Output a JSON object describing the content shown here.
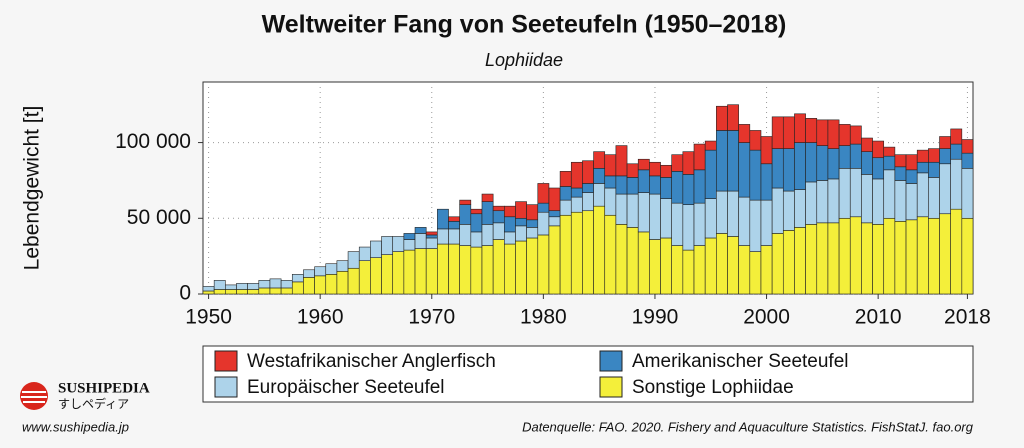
{
  "chart_data": {
    "type": "stacked-bar",
    "title": "Weltweiter Fang von Seeteufeln (1950–2018)",
    "subtitle": "Lophiidae",
    "y_label": "Lebendgewicht [t]",
    "source": "Datenquelle: FAO. 2020. Fishery and Aquaculture Statistics. FishStatJ. fao.org",
    "x": [
      1950,
      1951,
      1952,
      1953,
      1954,
      1955,
      1956,
      1957,
      1958,
      1959,
      1960,
      1961,
      1962,
      1963,
      1964,
      1965,
      1966,
      1967,
      1968,
      1969,
      1970,
      1971,
      1972,
      1973,
      1974,
      1975,
      1976,
      1977,
      1978,
      1979,
      1980,
      1981,
      1982,
      1983,
      1984,
      1985,
      1986,
      1987,
      1988,
      1989,
      1990,
      1991,
      1992,
      1993,
      1994,
      1995,
      1996,
      1997,
      1998,
      1999,
      2000,
      2001,
      2002,
      2003,
      2004,
      2005,
      2006,
      2007,
      2008,
      2009,
      2010,
      2011,
      2012,
      2013,
      2014,
      2015,
      2016,
      2017,
      2018
    ],
    "series": [
      {
        "name": "Sonstige Lophiidae",
        "color": "#f4ef3a",
        "values": [
          2000,
          3000,
          3000,
          3000,
          3000,
          4000,
          4000,
          4000,
          8000,
          11000,
          12000,
          13000,
          15000,
          17000,
          22000,
          24000,
          26000,
          28000,
          29000,
          30000,
          30000,
          33000,
          33000,
          32000,
          31000,
          32000,
          36000,
          33000,
          35000,
          37000,
          39000,
          45000,
          52000,
          54000,
          55000,
          58000,
          52000,
          46000,
          44000,
          41000,
          36000,
          37000,
          32000,
          29000,
          32000,
          37000,
          40000,
          38000,
          32000,
          28000,
          32000,
          40000,
          42000,
          44000,
          46000,
          47000,
          47000,
          50000,
          51000,
          47000,
          46000,
          50000,
          48000,
          49000,
          51000,
          50000,
          53000,
          56000,
          50000
        ]
      },
      {
        "name": "Europäischer Seeteufel",
        "color": "#add3ea",
        "values": [
          3000,
          6000,
          3000,
          4000,
          4000,
          5000,
          6000,
          5000,
          5000,
          5000,
          6000,
          7000,
          7000,
          11000,
          9000,
          11000,
          12000,
          10000,
          7000,
          10000,
          7000,
          10000,
          10000,
          14000,
          10000,
          14000,
          11000,
          8000,
          10000,
          7000,
          15000,
          6000,
          10000,
          10000,
          12000,
          15000,
          18000,
          20000,
          22000,
          26000,
          30000,
          26000,
          28000,
          30000,
          28000,
          26000,
          28000,
          30000,
          32000,
          34000,
          30000,
          30000,
          26000,
          25000,
          28000,
          28000,
          29000,
          33000,
          32000,
          32000,
          30000,
          32000,
          27000,
          24000,
          29000,
          27000,
          33000,
          33000,
          33000
        ]
      },
      {
        "name": "Amerikanischer Seeteufel",
        "color": "#3a86c2",
        "values": [
          0,
          0,
          0,
          0,
          0,
          0,
          0,
          0,
          0,
          0,
          0,
          0,
          0,
          0,
          0,
          0,
          0,
          0,
          4000,
          4000,
          2000,
          13000,
          5000,
          13000,
          12000,
          15000,
          8000,
          10000,
          5000,
          5000,
          6000,
          4000,
          9000,
          6000,
          6000,
          10000,
          8000,
          12000,
          11000,
          15000,
          12000,
          14000,
          21000,
          20000,
          22000,
          32000,
          40000,
          40000,
          36000,
          33000,
          24000,
          26000,
          28000,
          31000,
          26000,
          23000,
          20000,
          15000,
          16000,
          15000,
          14000,
          9000,
          9000,
          9000,
          7000,
          10000,
          10000,
          10000,
          10000
        ]
      },
      {
        "name": "Westafrikanischer Anglerfisch",
        "color": "#e5352c",
        "values": [
          0,
          0,
          0,
          0,
          0,
          0,
          0,
          0,
          0,
          0,
          0,
          0,
          0,
          0,
          0,
          0,
          0,
          0,
          0,
          0,
          2000,
          0,
          3000,
          3000,
          3000,
          5000,
          3000,
          7000,
          11000,
          10000,
          13000,
          15000,
          10000,
          17000,
          15000,
          11000,
          14000,
          20000,
          9000,
          7000,
          9000,
          8000,
          11000,
          15000,
          17000,
          6000,
          16000,
          17000,
          12000,
          13000,
          18000,
          21000,
          21000,
          19000,
          16000,
          17000,
          19000,
          14000,
          12000,
          9000,
          11000,
          6000,
          8000,
          10000,
          8000,
          9000,
          8000,
          10000,
          9000
        ]
      }
    ],
    "xlim": [
      1949.5,
      2018.5
    ],
    "xticks": [
      1950,
      1960,
      1970,
      1980,
      1990,
      2000,
      2010,
      2018
    ],
    "ylim": [
      0,
      140000
    ],
    "yticks": [
      0,
      {
        "value": 50000,
        "label": "50 000"
      },
      {
        "value": 100000,
        "label": "100 000"
      }
    ],
    "grid": true
  },
  "logo": {
    "name": "SUSHIPEDIA",
    "kana": "すしペディア",
    "url": "www.sushipedia.jp"
  }
}
